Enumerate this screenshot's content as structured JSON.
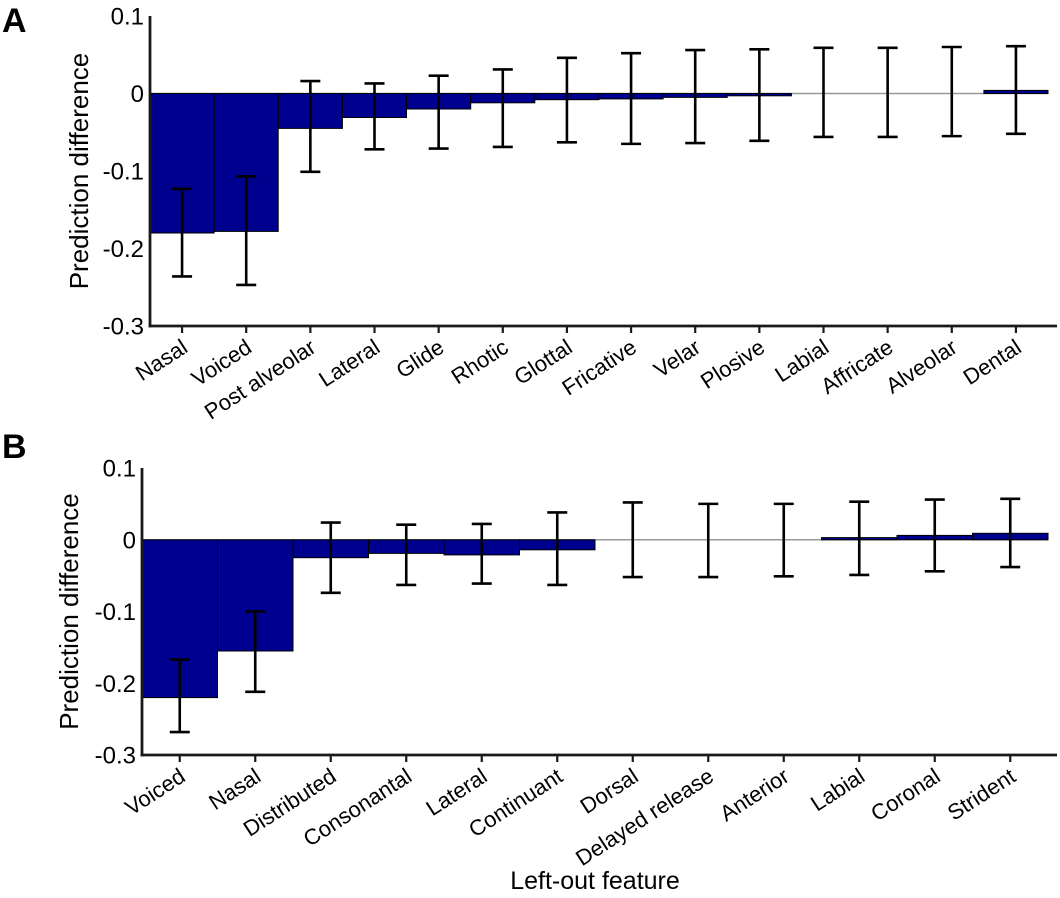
{
  "figure": {
    "background": "#ffffff",
    "description": "Two-panel bar chart of prediction difference per left-out phonetic feature, with error bars"
  },
  "colors": {
    "bar_fill": "#00008F",
    "bar_edge": "#000000",
    "error_bar": "#000000",
    "zero_line": "#999999",
    "axis": "#1a1a1a",
    "text": "#000000"
  },
  "chart_data": [
    {
      "panel_label": "A",
      "type": "bar",
      "ylabel": "Prediction difference",
      "xlabel": "",
      "ylim": [
        -0.3,
        0.1
      ],
      "yticks": [
        0.1,
        0,
        -0.1,
        -0.2,
        -0.3
      ],
      "ytick_labels": [
        "0.1",
        "0",
        "-0.1",
        "-0.2",
        "-0.3"
      ],
      "grid": false,
      "legend": null,
      "categories": [
        "Nasal",
        "Voiced",
        "Post alveolar",
        "Lateral",
        "Glide",
        "Rhotic",
        "Glottal",
        "Fricative",
        "Velar",
        "Plosive",
        "Labial",
        "Affricate",
        "Alveolar",
        "Dental"
      ],
      "values": [
        -0.18,
        -0.178,
        -0.045,
        -0.031,
        -0.02,
        -0.012,
        -0.008,
        -0.007,
        -0.005,
        -0.003,
        -0.001,
        -0.001,
        0.0,
        0.004
      ],
      "error_low": [
        -0.236,
        -0.247,
        -0.101,
        -0.072,
        -0.071,
        -0.069,
        -0.063,
        -0.065,
        -0.064,
        -0.061,
        -0.056,
        -0.056,
        -0.055,
        -0.052
      ],
      "error_high": [
        -0.123,
        -0.107,
        0.016,
        0.013,
        0.023,
        0.031,
        0.046,
        0.052,
        0.056,
        0.057,
        0.059,
        0.059,
        0.06,
        0.061
      ]
    },
    {
      "panel_label": "B",
      "type": "bar",
      "ylabel": "Prediction difference",
      "xlabel": "Left-out feature",
      "ylim": [
        -0.3,
        0.1
      ],
      "yticks": [
        0.1,
        0,
        -0.1,
        -0.2,
        -0.3
      ],
      "ytick_labels": [
        "0.1",
        "0",
        "-0.1",
        "-0.2",
        "-0.3"
      ],
      "grid": false,
      "legend": null,
      "categories": [
        "Voiced",
        "Nasal",
        "Distributed",
        "Consonantal",
        "Lateral",
        "Continuant",
        "Dorsal",
        "Delayed release",
        "Anterior",
        "Labial",
        "Coronal",
        "Strident"
      ],
      "values": [
        -0.22,
        -0.155,
        -0.025,
        -0.019,
        -0.021,
        -0.014,
        -0.001,
        -0.001,
        -0.001,
        0.003,
        0.006,
        0.009
      ],
      "error_low": [
        -0.268,
        -0.212,
        -0.074,
        -0.063,
        -0.061,
        -0.063,
        -0.052,
        -0.052,
        -0.051,
        -0.049,
        -0.044,
        -0.038
      ],
      "error_high": [
        -0.167,
        -0.1,
        0.024,
        0.021,
        0.022,
        0.038,
        0.052,
        0.05,
        0.05,
        0.053,
        0.056,
        0.057
      ]
    }
  ]
}
